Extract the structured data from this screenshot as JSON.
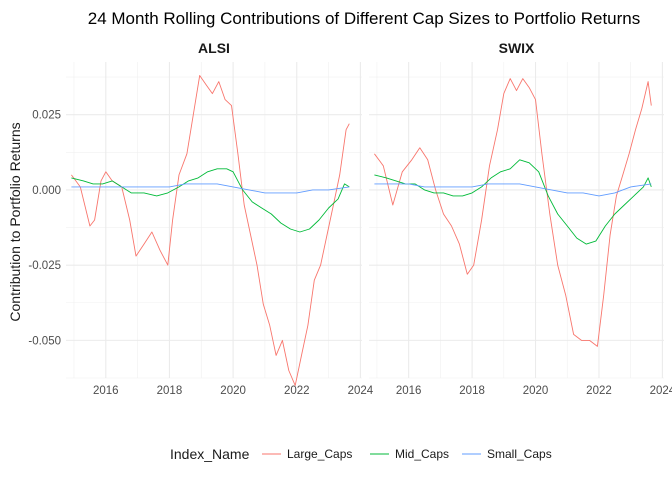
{
  "chart_data": {
    "type": "line",
    "title": "24 Month Rolling Contributions of Different Cap Sizes to Portfolio Returns",
    "ylabel": "Contribution to Portfolio Returns",
    "xlabel": "",
    "xlim": [
      2014.75,
      2024.05
    ],
    "ylim": [
      -0.0625,
      0.0425
    ],
    "x_ticks": [
      2016,
      2018,
      2020,
      2022,
      2024
    ],
    "x_tick_labels": [
      "2016",
      "2018",
      "2020",
      "2022",
      "2024"
    ],
    "y_ticks": [
      0.025,
      0.0,
      -0.025,
      -0.05
    ],
    "y_tick_labels": [
      "0.025",
      "0.000",
      "-0.025",
      "-0.050"
    ],
    "grid": true,
    "legend": {
      "title": "Index_Name",
      "placement": "bottom",
      "entries": [
        "Large_Caps",
        "Mid_Caps",
        "Small_Caps"
      ]
    },
    "colors": {
      "Large_Caps": "#F8766D",
      "Mid_Caps": "#00BA38",
      "Small_Caps": "#619CFF"
    },
    "panels": [
      {
        "name": "ALSI",
        "series": [
          {
            "name": "Large_Caps",
            "x": [
              2014.92,
              2015.2,
              2015.5,
              2015.65,
              2015.85,
              2016.0,
              2016.2,
              2016.5,
              2016.75,
              2016.95,
              2017.2,
              2017.45,
              2017.7,
              2017.95,
              2018.1,
              2018.3,
              2018.55,
              2018.75,
              2018.95,
              2019.15,
              2019.35,
              2019.55,
              2019.75,
              2019.95,
              2020.15,
              2020.35,
              2020.55,
              2020.75,
              2020.95,
              2021.15,
              2021.35,
              2021.55,
              2021.75,
              2021.95,
              2022.15,
              2022.35,
              2022.55,
              2022.75,
              2022.95,
              2023.15,
              2023.35,
              2023.55,
              2023.65
            ],
            "y": [
              0.005,
              0.001,
              -0.012,
              -0.01,
              0.003,
              0.006,
              0.003,
              0.001,
              -0.01,
              -0.022,
              -0.018,
              -0.014,
              -0.02,
              -0.025,
              -0.01,
              0.005,
              0.012,
              0.025,
              0.038,
              0.035,
              0.032,
              0.036,
              0.03,
              0.028,
              0.012,
              -0.005,
              -0.015,
              -0.025,
              -0.038,
              -0.045,
              -0.055,
              -0.05,
              -0.06,
              -0.065,
              -0.055,
              -0.045,
              -0.03,
              -0.025,
              -0.015,
              -0.005,
              0.005,
              0.02,
              0.022
            ]
          },
          {
            "name": "Mid_Caps",
            "x": [
              2014.92,
              2015.3,
              2015.6,
              2015.9,
              2016.2,
              2016.5,
              2016.8,
              2017.2,
              2017.6,
              2017.95,
              2018.3,
              2018.6,
              2018.9,
              2019.2,
              2019.5,
              2019.8,
              2020.0,
              2020.3,
              2020.6,
              2020.9,
              2021.2,
              2021.5,
              2021.8,
              2022.1,
              2022.4,
              2022.7,
              2023.0,
              2023.3,
              2023.5,
              2023.65
            ],
            "y": [
              0.004,
              0.003,
              0.002,
              0.002,
              0.003,
              0.001,
              -0.001,
              -0.001,
              -0.002,
              -0.001,
              0.001,
              0.003,
              0.004,
              0.006,
              0.007,
              0.007,
              0.006,
              0.0,
              -0.004,
              -0.006,
              -0.008,
              -0.011,
              -0.013,
              -0.014,
              -0.013,
              -0.01,
              -0.006,
              -0.003,
              0.002,
              0.001
            ]
          },
          {
            "name": "Small_Caps",
            "x": [
              2014.92,
              2015.5,
              2016.0,
              2016.5,
              2017.0,
              2017.5,
              2018.0,
              2018.5,
              2019.0,
              2019.5,
              2020.0,
              2020.5,
              2021.0,
              2021.5,
              2022.0,
              2022.5,
              2023.0,
              2023.65
            ],
            "y": [
              0.001,
              0.001,
              0.001,
              0.001,
              0.001,
              0.001,
              0.001,
              0.002,
              0.002,
              0.002,
              0.001,
              0.0,
              -0.001,
              -0.001,
              -0.001,
              0.0,
              0.0,
              0.001
            ]
          }
        ]
      },
      {
        "name": "SWIX",
        "series": [
          {
            "name": "Large_Caps",
            "x": [
              2014.92,
              2015.2,
              2015.5,
              2015.8,
              2016.1,
              2016.35,
              2016.6,
              2016.85,
              2017.1,
              2017.35,
              2017.6,
              2017.85,
              2018.05,
              2018.3,
              2018.55,
              2018.8,
              2019.0,
              2019.2,
              2019.4,
              2019.6,
              2019.8,
              2020.0,
              2020.2,
              2020.45,
              2020.7,
              2020.95,
              2021.2,
              2021.45,
              2021.7,
              2021.95,
              2022.15,
              2022.35,
              2022.55,
              2022.75,
              2022.95,
              2023.15,
              2023.35,
              2023.55,
              2023.65
            ],
            "y": [
              0.012,
              0.008,
              -0.005,
              0.006,
              0.01,
              0.014,
              0.01,
              0.0,
              -0.008,
              -0.012,
              -0.018,
              -0.028,
              -0.025,
              -0.01,
              0.008,
              0.02,
              0.032,
              0.037,
              0.033,
              0.037,
              0.034,
              0.03,
              0.012,
              -0.008,
              -0.025,
              -0.035,
              -0.048,
              -0.05,
              -0.05,
              -0.052,
              -0.035,
              -0.015,
              -0.002,
              0.005,
              0.012,
              0.02,
              0.027,
              0.036,
              0.028
            ]
          },
          {
            "name": "Mid_Caps",
            "x": [
              2014.92,
              2015.3,
              2015.6,
              2015.9,
              2016.2,
              2016.5,
              2016.8,
              2017.1,
              2017.4,
              2017.7,
              2018.0,
              2018.3,
              2018.6,
              2018.9,
              2019.2,
              2019.5,
              2019.8,
              2020.1,
              2020.4,
              2020.7,
              2021.0,
              2021.3,
              2021.6,
              2021.9,
              2022.2,
              2022.5,
              2022.8,
              2023.1,
              2023.4,
              2023.55,
              2023.65
            ],
            "y": [
              0.005,
              0.004,
              0.003,
              0.002,
              0.002,
              0.0,
              -0.001,
              -0.001,
              -0.002,
              -0.002,
              -0.001,
              0.001,
              0.004,
              0.006,
              0.007,
              0.01,
              0.009,
              0.006,
              -0.002,
              -0.008,
              -0.012,
              -0.016,
              -0.018,
              -0.017,
              -0.012,
              -0.008,
              -0.005,
              -0.002,
              0.001,
              0.004,
              0.001
            ]
          },
          {
            "name": "Small_Caps",
            "x": [
              2014.92,
              2015.5,
              2016.0,
              2016.5,
              2017.0,
              2017.5,
              2018.0,
              2018.5,
              2019.0,
              2019.5,
              2020.0,
              2020.5,
              2021.0,
              2021.5,
              2022.0,
              2022.5,
              2023.0,
              2023.65
            ],
            "y": [
              0.002,
              0.002,
              0.002,
              0.001,
              0.001,
              0.001,
              0.001,
              0.002,
              0.002,
              0.002,
              0.001,
              0.0,
              -0.001,
              -0.001,
              -0.002,
              -0.001,
              0.001,
              0.002
            ]
          }
        ]
      }
    ]
  }
}
